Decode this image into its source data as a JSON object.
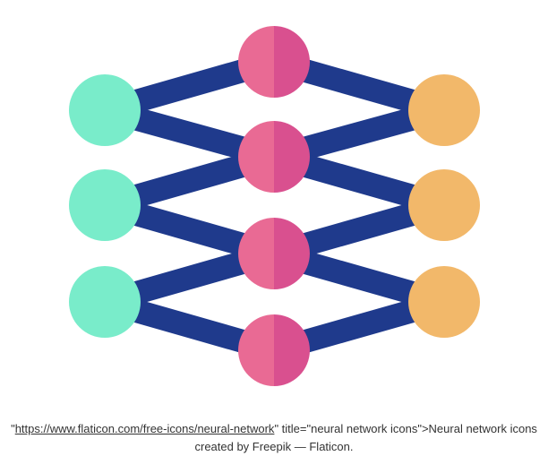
{
  "diagram": {
    "colors": {
      "edge": "#1f3a8c",
      "input": "#79ecca",
      "hidden_left": "#e96a94",
      "hidden_right": "#d9508f",
      "output": "#f2b86a"
    },
    "icon": "neural-network-icon"
  },
  "caption": {
    "open_quote": "\"",
    "link_text": "https://www.flaticon.com/free-icons/neural-network",
    "mid_text": "\" title=\"neural network icons\">Neural network icons",
    "line2": "created by Freepik — Flaticon."
  }
}
